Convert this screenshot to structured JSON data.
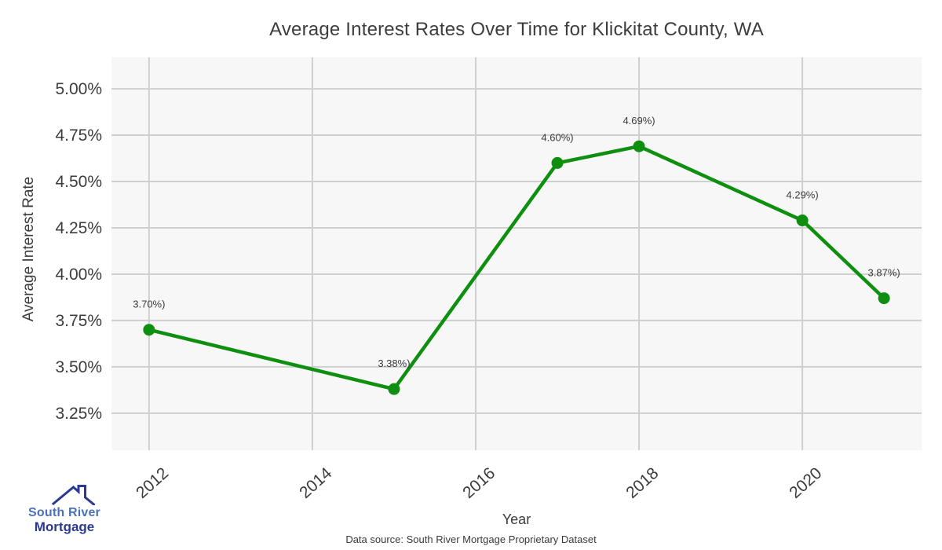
{
  "header": {
    "title": "Average Interest Rates Over Time for Klickitat County, WA"
  },
  "chart_data": {
    "type": "line",
    "title": "Average Interest Rates Over Time for Klickitat County, WA",
    "xlabel": "Year",
    "ylabel": "Average Interest Rate",
    "x": [
      2012,
      2015,
      2017,
      2018,
      2020,
      2021
    ],
    "y": [
      3.7,
      3.38,
      4.6,
      4.69,
      4.29,
      3.87
    ],
    "point_labels": [
      "3.70%)",
      "3.38%)",
      "4.60%)",
      "4.69%)",
      "4.29%)",
      "3.87%)"
    ],
    "x_ticks": {
      "values": [
        2012,
        2014,
        2016,
        2018,
        2020
      ],
      "labels": [
        "2012",
        "2014",
        "2016",
        "2018",
        "2020"
      ],
      "angle": -42
    },
    "y_ticks": {
      "values": [
        5.0,
        4.75,
        4.5,
        4.25,
        4.0,
        3.75,
        3.5,
        3.25
      ],
      "labels": [
        "5.00%",
        "4.75%",
        "4.50%",
        "4.25%",
        "4.00%",
        "3.75%",
        "3.50%",
        "3.25%"
      ]
    },
    "xlim": [
      2011.54,
      2021.46
    ],
    "ylim": [
      3.05,
      5.17
    ],
    "grid": true,
    "legend": false,
    "line_color": "#0f8f0f",
    "marker_color": "#0f8f0f",
    "plot_bg": "#f7f7f7",
    "grid_color": "#cfcfcf",
    "text_color": "#3b3b3b",
    "tick_color": "#3c3c3c"
  },
  "footer": {
    "source": "Data source: South River Mortgage Proprietary Dataset"
  },
  "logo": {
    "icon": "house-roof",
    "line1": "South River",
    "line2": "Mortgage",
    "line1_color": "#4a72b8",
    "line2_color": "#2b3990",
    "roof_color": "#2b3990"
  }
}
